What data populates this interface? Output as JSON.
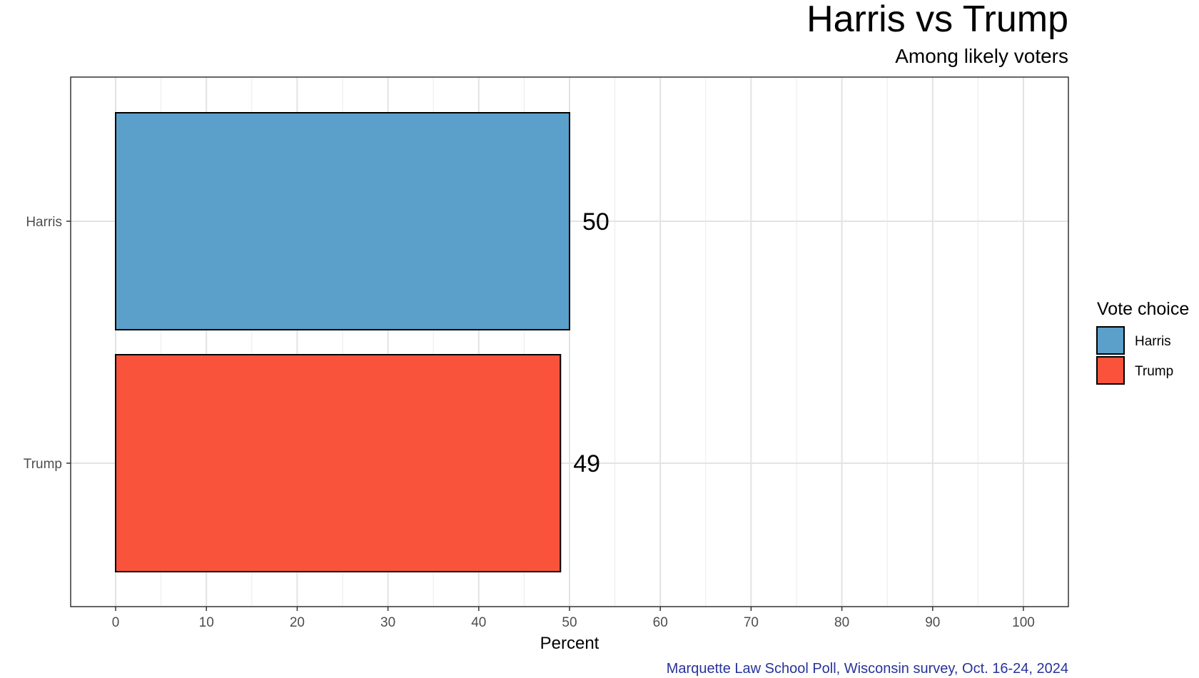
{
  "chart_data": {
    "type": "bar",
    "orientation": "horizontal",
    "title": "Harris vs Trump",
    "subtitle": "Among likely voters",
    "xlabel": "Percent",
    "ylabel": "",
    "xlim": [
      0,
      100
    ],
    "x_ticks": [
      0,
      10,
      20,
      30,
      40,
      50,
      60,
      70,
      80,
      90,
      100
    ],
    "grid": true,
    "categories": [
      "Harris",
      "Trump"
    ],
    "values": [
      50,
      49
    ],
    "data_labels": [
      "50",
      "49"
    ],
    "colors": [
      "#5b9fcb",
      "#f9533b"
    ],
    "legend": {
      "title": "Vote choice",
      "placement": "right",
      "entries": [
        "Harris",
        "Trump"
      ]
    },
    "caption": "Marquette Law School Poll, Wisconsin survey, Oct. 16-24, 2024",
    "caption_color": "#27339a"
  }
}
